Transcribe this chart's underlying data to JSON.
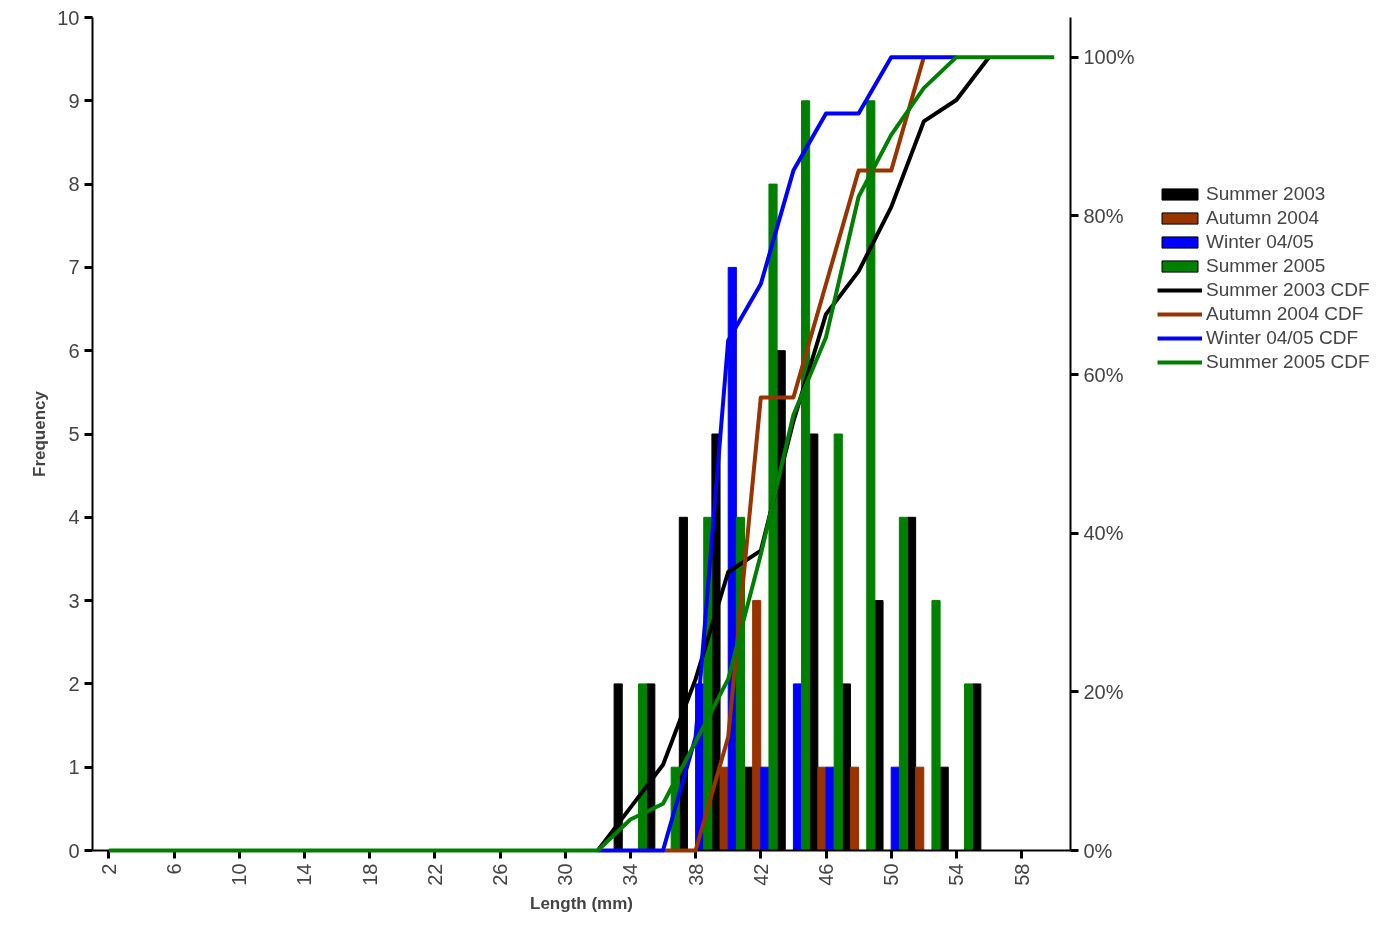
{
  "chart_data": {
    "type": "bar",
    "xlabel": "Length (mm)",
    "ylabel": "Frequency",
    "categories": [
      "2",
      null,
      "6",
      null,
      "10",
      null,
      "14",
      null,
      "18",
      null,
      "22",
      null,
      "26",
      null,
      "30",
      null,
      "34",
      null,
      "38",
      null,
      "42",
      null,
      "46",
      null,
      "50",
      null,
      "54",
      null,
      "58",
      null
    ],
    "ylim": [
      0,
      10
    ],
    "yticks": [
      0,
      1,
      2,
      3,
      4,
      5,
      6,
      7,
      8,
      9,
      10
    ],
    "y2lim": [
      0,
      105
    ],
    "y2ticks": [
      {
        "value": 0,
        "label": "0%"
      },
      {
        "value": 20,
        "label": "20%"
      },
      {
        "value": 40,
        "label": "40%"
      },
      {
        "value": 60,
        "label": "60%"
      },
      {
        "value": 80,
        "label": "80%"
      },
      {
        "value": 100,
        "label": "100%"
      }
    ],
    "grid": false,
    "legend": "right",
    "series": [
      {
        "name": "Summer 2003",
        "color": "#000000",
        "values": [
          0,
          0,
          0,
          0,
          0,
          0,
          0,
          0,
          0,
          0,
          0,
          0,
          0,
          0,
          0,
          0,
          2,
          2,
          4,
          5,
          1,
          6,
          5,
          2,
          3,
          4,
          1,
          2,
          0,
          0
        ]
      },
      {
        "name": "Autumn 2004",
        "color": "#993300",
        "values": [
          0,
          0,
          0,
          0,
          0,
          0,
          0,
          0,
          0,
          0,
          0,
          0,
          0,
          0,
          0,
          0,
          0,
          0,
          0,
          1,
          3,
          0,
          1,
          1,
          0,
          1,
          0,
          0,
          0,
          0
        ]
      },
      {
        "name": "Winter 04/05",
        "color": "#0000ff",
        "values": [
          0,
          0,
          0,
          0,
          0,
          0,
          0,
          0,
          0,
          0,
          0,
          0,
          0,
          0,
          0,
          0,
          0,
          0,
          2,
          7,
          1,
          2,
          1,
          0,
          1,
          0,
          0,
          0,
          0,
          0
        ]
      },
      {
        "name": "Summer 2005",
        "color": "#008000",
        "values": [
          0,
          0,
          0,
          0,
          0,
          0,
          0,
          0,
          0,
          0,
          0,
          0,
          0,
          0,
          0,
          0,
          2,
          1,
          4,
          4,
          8,
          9,
          5,
          9,
          4,
          3,
          2,
          0,
          0,
          0
        ]
      },
      {
        "name": "Summer 2003 CDF",
        "type": "line",
        "axis": "y2",
        "color": "#000000",
        "values": [
          null,
          null,
          null,
          null,
          null,
          null,
          null,
          null,
          null,
          null,
          null,
          null,
          null,
          null,
          null,
          0,
          5.4,
          10.8,
          21.6,
          35.1,
          37.8,
          54.1,
          67.6,
          73,
          81.1,
          91.9,
          94.6,
          100,
          null,
          null
        ]
      },
      {
        "name": "Autumn 2004 CDF",
        "type": "line",
        "axis": "y2",
        "color": "#993300",
        "values": [
          null,
          null,
          null,
          null,
          null,
          null,
          null,
          null,
          null,
          null,
          null,
          null,
          null,
          null,
          null,
          null,
          null,
          0,
          0,
          14.3,
          57.1,
          57.1,
          71.4,
          85.7,
          85.7,
          100,
          null,
          null,
          null,
          null
        ]
      },
      {
        "name": "Winter 04/05 CDF",
        "type": "line",
        "axis": "y2",
        "color": "#0000ff",
        "values": [
          null,
          null,
          null,
          null,
          null,
          null,
          null,
          null,
          null,
          null,
          null,
          null,
          null,
          null,
          null,
          0,
          0,
          0,
          14.3,
          64.3,
          71.4,
          85.7,
          92.9,
          92.9,
          100,
          100,
          100,
          null,
          null,
          null
        ]
      },
      {
        "name": "Summer 2005 CDF",
        "type": "line",
        "axis": "y2",
        "color": "#008000",
        "values": [
          0,
          0,
          0,
          0,
          0,
          0,
          0,
          0,
          0,
          0,
          0,
          0,
          0,
          0,
          0,
          0,
          3.9,
          5.9,
          13.7,
          21.6,
          37.3,
          54.9,
          64.7,
          82.4,
          90.2,
          96.1,
          100,
          100,
          100,
          100
        ]
      }
    ]
  }
}
